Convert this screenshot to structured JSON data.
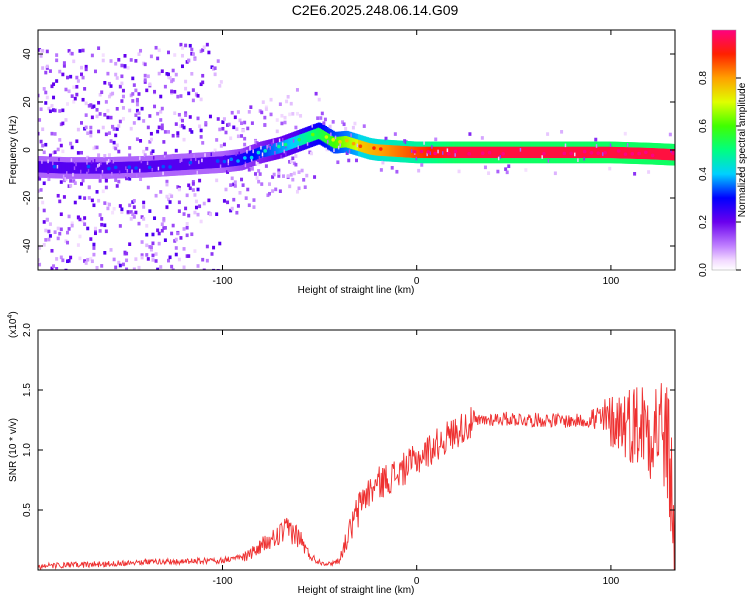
{
  "title": "C2E6.2025.248.06.14.G09",
  "chart_data": [
    {
      "type": "heatmap",
      "name": "spectrogram",
      "xlabel": "Height of straight line (km)",
      "ylabel": "Frequency (Hz)",
      "xlim": [
        -195,
        133
      ],
      "ylim": [
        -50,
        50
      ],
      "xticks": [
        -100,
        0,
        100
      ],
      "yticks": [
        -40,
        -20,
        0,
        20,
        40
      ],
      "xtick_labels": [
        "-100",
        "0",
        "100"
      ],
      "ytick_labels": [
        "-40",
        "-20",
        "0",
        "20",
        "40"
      ],
      "ridge": {
        "x": [
          -195,
          -180,
          -160,
          -140,
          -120,
          -100,
          -90,
          -80,
          -70,
          -60,
          -50,
          -42,
          -36,
          -30,
          -24,
          -20,
          -10,
          0,
          20,
          40,
          60,
          80,
          100,
          120,
          133
        ],
        "y": [
          -7,
          -7.5,
          -7.5,
          -7,
          -6,
          -5,
          -4,
          -1,
          1,
          4,
          7,
          3,
          3.5,
          2,
          0.5,
          0,
          -0.5,
          -1,
          -1,
          -1,
          -1,
          -1,
          -1,
          -1.5,
          -2
        ]
      },
      "colorbar": {
        "label": "Normalized spectral amplitude",
        "range": [
          0,
          1
        ],
        "ticks": [
          0.0,
          0.2,
          0.4,
          0.6,
          0.8
        ],
        "tick_labels": [
          "0.0",
          "0.2",
          "0.4",
          "0.6",
          "0.8"
        ]
      }
    },
    {
      "type": "line",
      "name": "snr",
      "xlabel": "Height of straight line (km)",
      "ylabel": "SNR (10 * v/v)",
      "multiplier": "(x10",
      "multiplier_exp": "4",
      "multiplier_close": ")",
      "xlim": [
        -195,
        133
      ],
      "ylim": [
        0,
        2.0
      ],
      "xticks": [
        -100,
        0,
        100
      ],
      "yticks": [
        0.5,
        1.0,
        1.5,
        2.0
      ],
      "xtick_labels": [
        "-100",
        "0",
        "100"
      ],
      "ytick_labels": [
        "0.5",
        "1.0",
        "1.5",
        "2.0"
      ],
      "color": "#ee3030",
      "series": [
        {
          "name": "SNR",
          "x": [
            -195,
            -180,
            -160,
            -140,
            -120,
            -100,
            -90,
            -85,
            -80,
            -75,
            -70,
            -65,
            -60,
            -56,
            -52,
            -48,
            -45,
            -40,
            -35,
            -30,
            -28,
            -25,
            -20,
            -15,
            -10,
            -5,
            0,
            5,
            10,
            15,
            20,
            25,
            30,
            35,
            40,
            50,
            60,
            70,
            80,
            90,
            100,
            105,
            110,
            115,
            120,
            125,
            128,
            130,
            133
          ],
          "y": [
            0.02,
            0.03,
            0.04,
            0.06,
            0.06,
            0.07,
            0.1,
            0.14,
            0.2,
            0.24,
            0.3,
            0.34,
            0.26,
            0.14,
            0.08,
            0.06,
            0.05,
            0.08,
            0.3,
            0.5,
            0.6,
            0.64,
            0.72,
            0.76,
            0.8,
            0.86,
            0.92,
            0.98,
            1.04,
            1.1,
            1.15,
            1.2,
            1.23,
            1.25,
            1.26,
            1.26,
            1.25,
            1.25,
            1.24,
            1.25,
            1.24,
            1.25,
            1.22,
            1.22,
            1.2,
            1.2,
            1.1,
            0.9,
            0.35
          ]
        }
      ]
    }
  ]
}
